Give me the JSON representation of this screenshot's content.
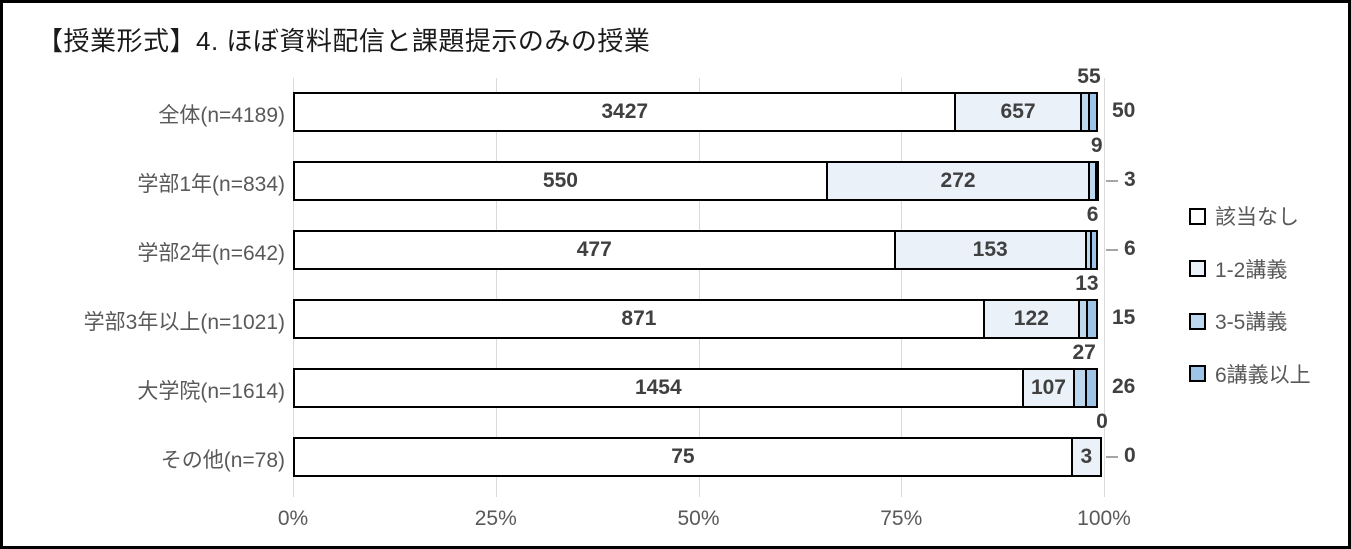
{
  "title": "【授業形式】4. ほぼ資料配信と課題提示のみの授業",
  "colors": {
    "bar_border": "#000000",
    "gridline": "#d9d9d9",
    "value_label": "#404040",
    "axis_label": "#595959",
    "leader_line": "#a6a6a6"
  },
  "chart_data": {
    "type": "bar",
    "subtype": "100%-stacked-horizontal",
    "title": "【授業形式】4. ほぼ資料配信と課題提示のみの授業",
    "categories": [
      "全体(n=4189)",
      "学部1年(n=834)",
      "学部2年(n=642)",
      "学部3年以上(n=1021)",
      "大学院(n=1614)",
      "その他(n=78)"
    ],
    "series": [
      {
        "name": "該当なし",
        "color": "#ffffff",
        "values": [
          3427,
          550,
          477,
          871,
          1454,
          75
        ]
      },
      {
        "name": "1-2講義",
        "color": "#eaf1f8",
        "values": [
          657,
          272,
          153,
          122,
          107,
          3
        ]
      },
      {
        "name": "3-5講義",
        "color": "#bdd7ee",
        "values": [
          55,
          9,
          6,
          13,
          27,
          0
        ]
      },
      {
        "name": "6講義以上",
        "color": "#9dc3e6",
        "values": [
          50,
          3,
          6,
          15,
          26,
          0
        ]
      }
    ],
    "series3_label_position": "above-bar",
    "series4_label_position": "right-of-bar",
    "series4_label_leader": [
      false,
      true,
      true,
      false,
      false,
      true
    ],
    "xlabel": "",
    "ylabel": "",
    "x_ticks": [
      "0%",
      "25%",
      "50%",
      "75%",
      "100%"
    ],
    "x_tick_values": [
      0,
      25,
      50,
      75,
      100
    ],
    "xlim": [
      0,
      100
    ],
    "grid": "vertical",
    "legend_position": "right",
    "legend": [
      "該当なし",
      "1-2講義",
      "3-5講義",
      "6講義以上"
    ]
  }
}
